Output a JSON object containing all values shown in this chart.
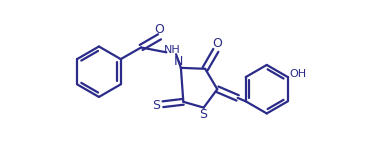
{
  "line_color": "#2b2b8a",
  "bg_color": "#ffffff",
  "line_width": 1.6,
  "figsize": [
    3.87,
    1.58
  ],
  "dpi": 100,
  "font_size": 8.0,
  "xlim": [
    0.0,
    5.5
  ],
  "ylim": [
    0.0,
    3.2
  ]
}
